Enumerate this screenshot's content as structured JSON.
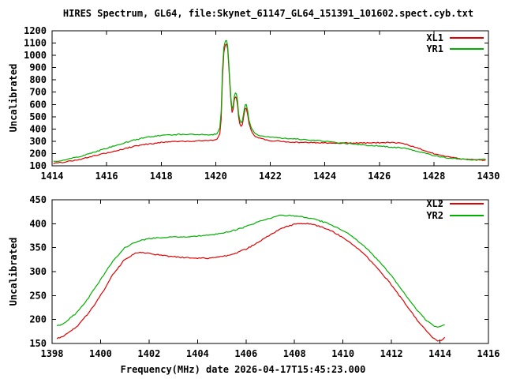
{
  "page": {
    "background": "#ffffff",
    "axis_color": "#000000"
  },
  "chart_data": [
    {
      "type": "line",
      "title": "HIRES Spectrum, GL64, file:Skynet_61147_GL64_151391_101602.spect.cyb.txt",
      "ylabel": "Uncalibrated",
      "xlabel": "",
      "xlim": [
        1414,
        1430
      ],
      "ylim": [
        100,
        1200
      ],
      "x_ticks": [
        1414,
        1416,
        1418,
        1420,
        1422,
        1424,
        1426,
        1428,
        1430
      ],
      "y_ticks": [
        100,
        200,
        300,
        400,
        500,
        600,
        700,
        800,
        900,
        1000,
        1100,
        1200
      ],
      "grid": false,
      "legend_position": "top-right",
      "series": [
        {
          "name": "XL1",
          "color": "#e00000",
          "points": [
            [
              1414.05,
              120
            ],
            [
              1414.5,
              132
            ],
            [
              1415,
              152
            ],
            [
              1415.5,
              178
            ],
            [
              1416,
              205
            ],
            [
              1416.5,
              232
            ],
            [
              1417,
              258
            ],
            [
              1417.5,
              277
            ],
            [
              1418,
              290
            ],
            [
              1418.5,
              297
            ],
            [
              1419,
              301
            ],
            [
              1419.5,
              304
            ],
            [
              1419.9,
              310
            ],
            [
              1420.05,
              318
            ],
            [
              1420.15,
              362
            ],
            [
              1420.2,
              480
            ],
            [
              1420.25,
              820
            ],
            [
              1420.3,
              1020
            ],
            [
              1420.33,
              1060
            ],
            [
              1420.36,
              1085
            ],
            [
              1420.4,
              1092
            ],
            [
              1420.44,
              1050
            ],
            [
              1420.48,
              900
            ],
            [
              1420.52,
              760
            ],
            [
              1420.56,
              625
            ],
            [
              1420.6,
              532
            ],
            [
              1420.64,
              560
            ],
            [
              1420.68,
              640
            ],
            [
              1420.72,
              662
            ],
            [
              1420.76,
              655
            ],
            [
              1420.8,
              600
            ],
            [
              1420.84,
              500
            ],
            [
              1420.88,
              445
            ],
            [
              1420.93,
              424
            ],
            [
              1420.98,
              440
            ],
            [
              1421.03,
              510
            ],
            [
              1421.08,
              568
            ],
            [
              1421.12,
              572
            ],
            [
              1421.17,
              520
            ],
            [
              1421.22,
              450
            ],
            [
              1421.3,
              388
            ],
            [
              1421.4,
              352
            ],
            [
              1421.5,
              332
            ],
            [
              1421.75,
              316
            ],
            [
              1422,
              306
            ],
            [
              1422.5,
              298
            ],
            [
              1423,
              292
            ],
            [
              1423.5,
              289
            ],
            [
              1424,
              287
            ],
            [
              1424.5,
              286
            ],
            [
              1425,
              286
            ],
            [
              1425.5,
              287
            ],
            [
              1426,
              289
            ],
            [
              1426.5,
              288
            ],
            [
              1426.8,
              282
            ],
            [
              1427,
              273
            ],
            [
              1427.5,
              238
            ],
            [
              1428,
              200
            ],
            [
              1428.5,
              172
            ],
            [
              1429,
              156
            ],
            [
              1429.4,
              149
            ],
            [
              1429.9,
              147
            ]
          ]
        },
        {
          "name": "YR1",
          "color": "#00b000",
          "points": [
            [
              1414.05,
              133
            ],
            [
              1414.5,
              150
            ],
            [
              1415,
              175
            ],
            [
              1415.5,
              208
            ],
            [
              1416,
              243
            ],
            [
              1416.5,
              277
            ],
            [
              1417,
              310
            ],
            [
              1417.5,
              333
            ],
            [
              1418,
              348
            ],
            [
              1418.5,
              355
            ],
            [
              1419,
              357
            ],
            [
              1419.5,
              356
            ],
            [
              1419.9,
              353
            ],
            [
              1420.05,
              362
            ],
            [
              1420.15,
              408
            ],
            [
              1420.2,
              545
            ],
            [
              1420.25,
              885
            ],
            [
              1420.3,
              1065
            ],
            [
              1420.33,
              1100
            ],
            [
              1420.36,
              1118
            ],
            [
              1420.4,
              1122
            ],
            [
              1420.44,
              1075
            ],
            [
              1420.48,
              930
            ],
            [
              1420.52,
              790
            ],
            [
              1420.56,
              655
            ],
            [
              1420.6,
              560
            ],
            [
              1420.64,
              588
            ],
            [
              1420.68,
              668
            ],
            [
              1420.72,
              692
            ],
            [
              1420.76,
              685
            ],
            [
              1420.8,
              628
            ],
            [
              1420.84,
              528
            ],
            [
              1420.88,
              472
            ],
            [
              1420.93,
              450
            ],
            [
              1420.98,
              468
            ],
            [
              1421.03,
              538
            ],
            [
              1421.08,
              595
            ],
            [
              1421.12,
              600
            ],
            [
              1421.17,
              548
            ],
            [
              1421.22,
              476
            ],
            [
              1421.3,
              412
            ],
            [
              1421.4,
              375
            ],
            [
              1421.5,
              355
            ],
            [
              1421.75,
              342
            ],
            [
              1422,
              334
            ],
            [
              1422.5,
              326
            ],
            [
              1423,
              318
            ],
            [
              1423.5,
              309
            ],
            [
              1424,
              300
            ],
            [
              1424.5,
              289
            ],
            [
              1425,
              278
            ],
            [
              1425.5,
              269
            ],
            [
              1426,
              261
            ],
            [
              1426.5,
              252
            ],
            [
              1426.8,
              247
            ],
            [
              1427,
              240
            ],
            [
              1427.5,
              213
            ],
            [
              1428,
              183
            ],
            [
              1428.5,
              164
            ],
            [
              1429,
              154
            ],
            [
              1429.4,
              150
            ],
            [
              1429.9,
              152
            ]
          ]
        }
      ]
    },
    {
      "type": "line",
      "title": "",
      "ylabel": "Uncalibrated",
      "xlabel": "Frequency(MHz) date 2026-04-17T15:45:23.000",
      "xlim": [
        1398,
        1416
      ],
      "ylim": [
        150,
        450
      ],
      "x_ticks": [
        1398,
        1400,
        1402,
        1404,
        1406,
        1408,
        1410,
        1412,
        1414,
        1416
      ],
      "y_ticks": [
        150,
        200,
        250,
        300,
        350,
        400,
        450
      ],
      "grid": false,
      "legend_position": "top-right",
      "series": [
        {
          "name": "XL2",
          "color": "#e00000",
          "points": [
            [
              1398.2,
              160
            ],
            [
              1398.5,
              166
            ],
            [
              1399,
              184
            ],
            [
              1399.5,
              213
            ],
            [
              1400,
              250
            ],
            [
              1400.5,
              293
            ],
            [
              1401,
              326
            ],
            [
              1401.5,
              340
            ],
            [
              1402,
              338
            ],
            [
              1402.5,
              334
            ],
            [
              1403,
              331
            ],
            [
              1403.5,
              329
            ],
            [
              1404,
              328
            ],
            [
              1404.5,
              328
            ],
            [
              1405,
              331
            ],
            [
              1405.5,
              337
            ],
            [
              1406,
              347
            ],
            [
              1406.5,
              361
            ],
            [
              1407,
              377
            ],
            [
              1407.5,
              391
            ],
            [
              1408,
              399
            ],
            [
              1408.4,
              401
            ],
            [
              1408.8,
              398
            ],
            [
              1409.2,
              392
            ],
            [
              1409.6,
              383
            ],
            [
              1410,
              371
            ],
            [
              1410.5,
              353
            ],
            [
              1411,
              330
            ],
            [
              1411.5,
              303
            ],
            [
              1412,
              272
            ],
            [
              1412.5,
              238
            ],
            [
              1413,
              203
            ],
            [
              1413.4,
              178
            ],
            [
              1413.7,
              163
            ],
            [
              1413.9,
              156
            ],
            [
              1414.05,
              157
            ],
            [
              1414.2,
              163
            ]
          ]
        },
        {
          "name": "YR2",
          "color": "#00b000",
          "points": [
            [
              1398.2,
              186
            ],
            [
              1398.5,
              193
            ],
            [
              1399,
              213
            ],
            [
              1399.5,
              245
            ],
            [
              1400,
              283
            ],
            [
              1400.5,
              322
            ],
            [
              1401,
              350
            ],
            [
              1401.5,
              363
            ],
            [
              1402,
              369
            ],
            [
              1402.5,
              371
            ],
            [
              1403,
              372
            ],
            [
              1403.5,
              373
            ],
            [
              1404,
              374
            ],
            [
              1404.5,
              376
            ],
            [
              1405,
              380
            ],
            [
              1405.5,
              386
            ],
            [
              1406,
              394
            ],
            [
              1406.5,
              404
            ],
            [
              1407,
              412
            ],
            [
              1407.4,
              417
            ],
            [
              1407.8,
              417
            ],
            [
              1408.2,
              415
            ],
            [
              1408.6,
              412
            ],
            [
              1409,
              407
            ],
            [
              1409.5,
              398
            ],
            [
              1410,
              386
            ],
            [
              1410.5,
              369
            ],
            [
              1411,
              347
            ],
            [
              1411.5,
              321
            ],
            [
              1412,
              291
            ],
            [
              1412.5,
              257
            ],
            [
              1413,
              223
            ],
            [
              1413.4,
              200
            ],
            [
              1413.7,
              188
            ],
            [
              1413.9,
              184
            ],
            [
              1414.05,
              185
            ],
            [
              1414.2,
              189
            ]
          ]
        }
      ]
    }
  ]
}
